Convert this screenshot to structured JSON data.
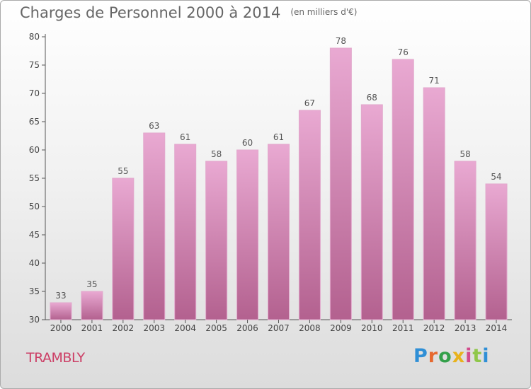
{
  "header": {
    "title": "Charges de Personnel 2000 à 2014",
    "subtitle": "(en milliers d'€)"
  },
  "footer": {
    "place": "TRAMBLY",
    "brand": "Proxiti",
    "brand_colors": [
      "#2f8fd6",
      "#e6682e",
      "#33a04a",
      "#e8b21c",
      "#d24a8c",
      "#8fc74a",
      "#2f8fd6"
    ]
  },
  "colors": {
    "bar_top": "#e9a9d2",
    "bar_bottom": "#b3618f",
    "bar_edge": "#e2a8cc",
    "axis": "#555555",
    "grid": "#d9d9d9"
  },
  "chart_data": {
    "type": "bar",
    "title": "Charges de Personnel 2000 à 2014",
    "subtitle": "(en milliers d'€)",
    "categories": [
      "2000",
      "2001",
      "2002",
      "2003",
      "2004",
      "2005",
      "2006",
      "2007",
      "2008",
      "2009",
      "2010",
      "2011",
      "2012",
      "2013",
      "2014"
    ],
    "values": [
      33,
      35,
      55,
      63,
      61,
      58,
      60,
      61,
      67,
      78,
      68,
      76,
      71,
      58,
      54
    ],
    "ylim": [
      30,
      80
    ],
    "yticks": [
      30,
      35,
      40,
      45,
      50,
      55,
      60,
      65,
      70,
      75,
      80
    ],
    "grid": false,
    "xlabel": "",
    "ylabel": ""
  }
}
